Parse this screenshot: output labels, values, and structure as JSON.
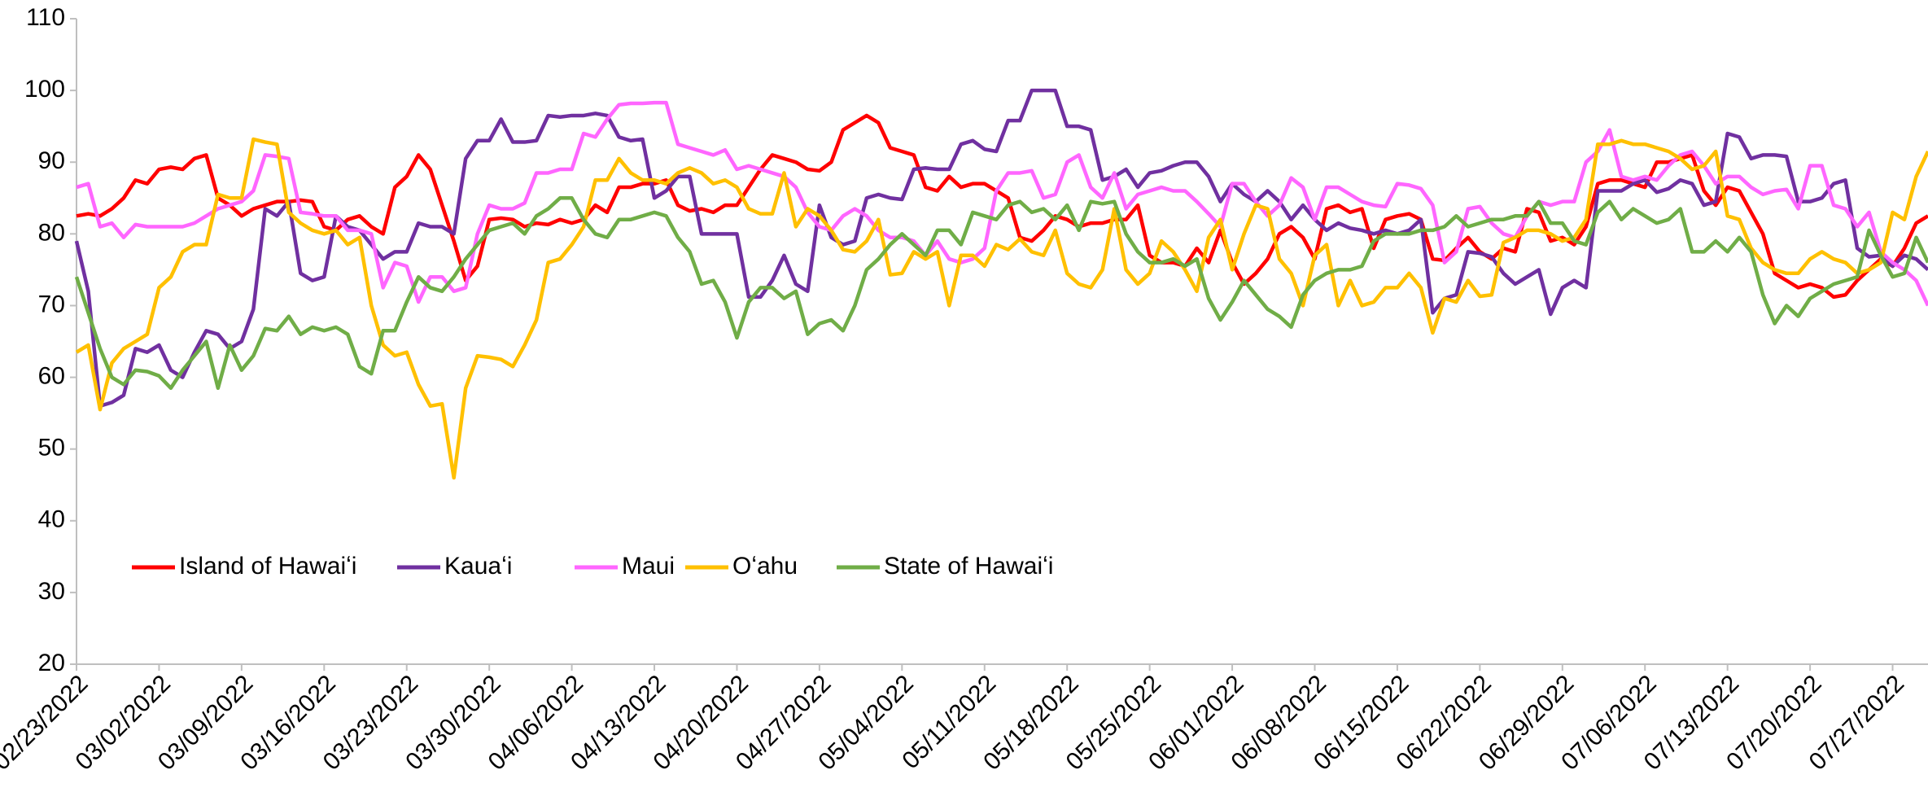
{
  "chart_data": {
    "type": "line",
    "categories": [
      "02/23/2022",
      null,
      null,
      null,
      null,
      null,
      null,
      "03/02/2022",
      null,
      null,
      null,
      null,
      null,
      null,
      "03/09/2022",
      null,
      null,
      null,
      null,
      null,
      null,
      "03/16/2022",
      null,
      null,
      null,
      null,
      null,
      null,
      "03/23/2022",
      null,
      null,
      null,
      null,
      null,
      null,
      "03/30/2022",
      null,
      null,
      null,
      null,
      null,
      null,
      "04/06/2022",
      null,
      null,
      null,
      null,
      null,
      null,
      "04/13/2022",
      null,
      null,
      null,
      null,
      null,
      null,
      "04/20/2022",
      null,
      null,
      null,
      null,
      null,
      null,
      "04/27/2022",
      null,
      null,
      null,
      null,
      null,
      null,
      "05/04/2022",
      null,
      null,
      null,
      null,
      null,
      null,
      "05/11/2022",
      null,
      null,
      null,
      null,
      null,
      null,
      "05/18/2022",
      null,
      null,
      null,
      null,
      null,
      null,
      "05/25/2022",
      null,
      null,
      null,
      null,
      null,
      null,
      "06/01/2022",
      null,
      null,
      null,
      null,
      null,
      null,
      "06/08/2022",
      null,
      null,
      null,
      null,
      null,
      null,
      "06/15/2022",
      null,
      null,
      null,
      null,
      null,
      null,
      "06/22/2022",
      null,
      null,
      null,
      null,
      null,
      null,
      "06/29/2022",
      null,
      null,
      null,
      null,
      null,
      null,
      "07/06/2022",
      null,
      null,
      null,
      null,
      null,
      null,
      "07/13/2022",
      null,
      null,
      null,
      null,
      null,
      null,
      "07/20/2022",
      null,
      null,
      null,
      null,
      null,
      null,
      "07/27/2022",
      null,
      null,
      null
    ],
    "series": [
      {
        "name": "Island of Hawaiʻi",
        "color": "#ff0000",
        "values": [
          82.5,
          82.8,
          82.5,
          83.5,
          85,
          87.5,
          87,
          89,
          89.3,
          89,
          90.5,
          91,
          85,
          84,
          82.5,
          83.5,
          84,
          84.5,
          84.5,
          84.7,
          84.5,
          81,
          80.5,
          82,
          82.5,
          81,
          80,
          86.5,
          88,
          91,
          89,
          84,
          79,
          73.5,
          75.5,
          82,
          82.2,
          82,
          81,
          81.5,
          81.3,
          82,
          81.5,
          82,
          84,
          83,
          86.5,
          86.5,
          87,
          87,
          87.5,
          84,
          83.2,
          83.5,
          83,
          84,
          84,
          86.5,
          89,
          91,
          90.5,
          90,
          89,
          88.8,
          90,
          94.5,
          95.5,
          96.5,
          95.5,
          92,
          91.5,
          91,
          86.5,
          86,
          88,
          86.5,
          87,
          87,
          86,
          85,
          79.5,
          79,
          80.5,
          82.5,
          82,
          81,
          81.5,
          81.5,
          82,
          82,
          84,
          77,
          76,
          76,
          75.5,
          78,
          76,
          80.5,
          76,
          73,
          74.5,
          76.5,
          80,
          81,
          79.5,
          76.5,
          83.5,
          84,
          83,
          83.5,
          78,
          82,
          82.5,
          82.8,
          82,
          76.5,
          76.3,
          78,
          79.5,
          77.5,
          76.5,
          78,
          77.5,
          83.5,
          83,
          79,
          79.5,
          78.5,
          81,
          87,
          87.5,
          87.5,
          87,
          86.5,
          90,
          90,
          90.5,
          91,
          86,
          84,
          86.5,
          86,
          83,
          80,
          74.5,
          73.5,
          72.5,
          73,
          72.5,
          71.2,
          71.5,
          73.5,
          75,
          76.5,
          75.5,
          78,
          81.5,
          82.5
        ]
      },
      {
        "name": "Kauaʻi",
        "color": "#7030a0",
        "values": [
          79,
          72,
          56,
          56.5,
          57.5,
          64,
          63.5,
          64.5,
          61,
          60,
          63.5,
          66.5,
          66,
          64,
          65,
          69.5,
          83.5,
          82.5,
          84.5,
          74.5,
          73.5,
          74,
          82.5,
          81,
          80.5,
          78.5,
          76.5,
          77.5,
          77.5,
          81.5,
          81,
          81,
          80,
          90.5,
          93,
          93,
          96,
          92.8,
          92.8,
          93,
          96.5,
          96.3,
          96.5,
          96.5,
          96.8,
          96.5,
          93.5,
          93,
          93.2,
          85,
          86,
          88,
          88,
          80,
          80,
          80,
          80,
          71.2,
          71.2,
          73.5,
          77,
          73,
          72,
          84,
          79.5,
          78.5,
          79,
          85,
          85.5,
          85,
          84.8,
          89,
          89.2,
          89,
          89,
          92.5,
          93,
          91.8,
          91.5,
          95.8,
          95.8,
          100,
          100,
          100,
          95,
          95,
          94.5,
          87.5,
          88,
          89,
          86.5,
          88.5,
          88.8,
          89.5,
          90,
          90,
          88,
          84.5,
          87,
          85.5,
          84.5,
          86,
          84.5,
          82,
          84,
          82,
          80.5,
          81.5,
          80.8,
          80.5,
          80,
          80.5,
          80,
          80.5,
          82,
          69,
          71,
          71.5,
          77.5,
          77.3,
          76.8,
          74.5,
          73,
          74,
          75,
          68.8,
          72.5,
          73.5,
          72.5,
          86,
          86,
          86,
          87,
          87.5,
          85.8,
          86.3,
          87.5,
          87,
          84,
          84.5,
          94,
          93.5,
          90.5,
          91,
          91,
          90.8,
          84.5,
          84.5,
          85,
          87,
          87.5,
          78,
          76.8,
          77,
          75.5,
          77,
          76.5,
          75
        ]
      },
      {
        "name": "Maui",
        "color": "#ff66ff",
        "values": [
          86.5,
          87,
          81,
          81.5,
          79.5,
          81.3,
          81,
          81,
          81,
          81,
          81.5,
          82.5,
          83.5,
          84,
          84.5,
          86,
          91,
          90.8,
          90.5,
          83,
          82.8,
          82.5,
          82.5,
          80.5,
          80.5,
          80,
          72.5,
          76,
          75.5,
          70.5,
          74,
          74,
          72,
          72.5,
          80,
          84,
          83.5,
          83.5,
          84.3,
          88.5,
          88.5,
          89,
          89,
          94,
          93.5,
          96,
          98,
          98.2,
          98.2,
          98.3,
          98.3,
          92.5,
          92,
          91.5,
          91,
          91.7,
          89,
          89.5,
          89,
          88.5,
          88,
          86.5,
          83,
          81,
          80.5,
          82.5,
          83.5,
          82.5,
          80.5,
          79.5,
          79.5,
          79,
          77,
          79,
          76.5,
          76,
          76.5,
          78,
          86,
          88.5,
          88.5,
          88.8,
          85,
          85.5,
          90,
          91,
          86.5,
          85,
          88.5,
          83.5,
          85.5,
          86,
          86.5,
          86,
          86,
          84.5,
          82.8,
          81,
          87,
          87,
          84.5,
          82.5,
          84,
          87.8,
          86.5,
          82,
          86.5,
          86.5,
          85.5,
          84.5,
          84,
          83.8,
          87,
          86.8,
          86.3,
          84,
          76,
          77.5,
          83.5,
          83.8,
          81.5,
          80,
          79.5,
          82.5,
          84.5,
          84,
          84.5,
          84.5,
          90,
          91.5,
          94.5,
          88,
          87.5,
          88,
          87.5,
          89.5,
          91,
          91.5,
          89.5,
          87,
          88,
          88,
          86.5,
          85.5,
          86,
          86.2,
          83.5,
          89.5,
          89.5,
          84,
          83.5,
          81,
          83,
          77.5,
          76,
          75,
          73.5,
          70
        ]
      },
      {
        "name": "Oʻahu",
        "color": "#ffc000",
        "values": [
          63.5,
          64.5,
          55.5,
          62,
          64,
          65,
          66,
          72.5,
          74,
          77.5,
          78.5,
          78.5,
          85.5,
          85,
          85,
          93.2,
          92.8,
          92.5,
          83,
          81.5,
          80.5,
          80,
          80.5,
          78.5,
          79.5,
          70,
          64.5,
          63,
          63.5,
          59,
          56,
          56.3,
          46,
          58.5,
          63,
          62.8,
          62.5,
          61.5,
          64.5,
          68,
          76,
          76.5,
          78.5,
          81,
          87.5,
          87.5,
          90.5,
          88.5,
          87.5,
          87.5,
          87,
          88.5,
          89.2,
          88.5,
          87,
          87.5,
          86.5,
          83.5,
          82.8,
          82.8,
          88.5,
          81,
          83.5,
          82.5,
          80.5,
          77.8,
          77.5,
          79,
          82,
          74.3,
          74.5,
          77.5,
          76.5,
          77.5,
          70,
          77,
          77,
          75.5,
          78.5,
          77.8,
          79.3,
          77.5,
          77,
          80.5,
          74.5,
          73,
          72.5,
          75,
          83.5,
          75,
          73,
          74.5,
          79,
          77.5,
          75,
          72,
          79.5,
          82,
          75,
          80,
          84,
          83.5,
          76.5,
          74.5,
          70,
          77,
          78.5,
          70,
          73.5,
          70,
          70.5,
          72.5,
          72.5,
          74.5,
          72.5,
          66.2,
          71,
          70.5,
          73.5,
          71.3,
          71.5,
          78.8,
          79.5,
          80.5,
          80.5,
          80,
          79,
          79.5,
          82,
          92.5,
          92.5,
          93,
          92.5,
          92.5,
          92,
          91.5,
          90.5,
          89,
          89.5,
          91.5,
          82.5,
          82,
          78,
          76,
          75,
          74.5,
          74.5,
          76.5,
          77.5,
          76.5,
          76,
          74.5,
          75,
          76,
          83,
          82,
          88,
          91.5
        ]
      },
      {
        "name": "State of Hawaiʻi",
        "color": "#70ad47",
        "values": [
          74,
          69,
          64,
          60,
          59,
          61,
          60.8,
          60.2,
          58.5,
          61,
          63,
          65,
          58.5,
          64.5,
          61,
          63,
          66.8,
          66.5,
          68.5,
          66,
          67,
          66.5,
          67,
          66,
          61.5,
          60.5,
          66.5,
          66.5,
          70.5,
          74,
          72.5,
          72,
          74,
          76.5,
          78.5,
          80.5,
          81,
          81.5,
          80,
          82.5,
          83.5,
          85,
          85,
          82,
          80,
          79.5,
          82,
          82,
          82.5,
          83,
          82.5,
          79.5,
          77.5,
          73,
          73.5,
          70.5,
          65.5,
          70.5,
          72.5,
          72.5,
          71,
          72,
          66,
          67.5,
          68,
          66.5,
          70,
          75,
          76.5,
          78.5,
          80,
          78.5,
          77,
          80.5,
          80.5,
          78.5,
          83,
          82.5,
          82,
          84,
          84.5,
          83,
          83.5,
          82,
          84,
          80.5,
          84.5,
          84.2,
          84.5,
          80,
          77.5,
          76,
          76,
          76.5,
          75.5,
          76.5,
          71,
          68,
          70.5,
          73.5,
          71.5,
          69.5,
          68.5,
          67,
          71.5,
          73.5,
          74.5,
          75,
          75,
          75.5,
          79,
          80,
          80,
          80,
          80.5,
          80.5,
          81,
          82.5,
          81,
          81.5,
          82,
          82,
          82.5,
          82.5,
          84.5,
          81.5,
          81.5,
          79,
          78.5,
          83,
          84.5,
          82,
          83.5,
          82.5,
          81.5,
          82,
          83.5,
          77.5,
          77.5,
          79,
          77.5,
          79.5,
          77.5,
          71.5,
          67.5,
          70,
          68.5,
          71,
          72,
          73,
          73.5,
          74,
          80.5,
          77,
          74,
          74.5,
          79.5,
          76
        ]
      }
    ],
    "ylim": [
      20,
      110
    ],
    "yticks": [
      20,
      30,
      40,
      50,
      60,
      70,
      80,
      90,
      100,
      110
    ],
    "grid": false,
    "legend": "lower-left"
  }
}
